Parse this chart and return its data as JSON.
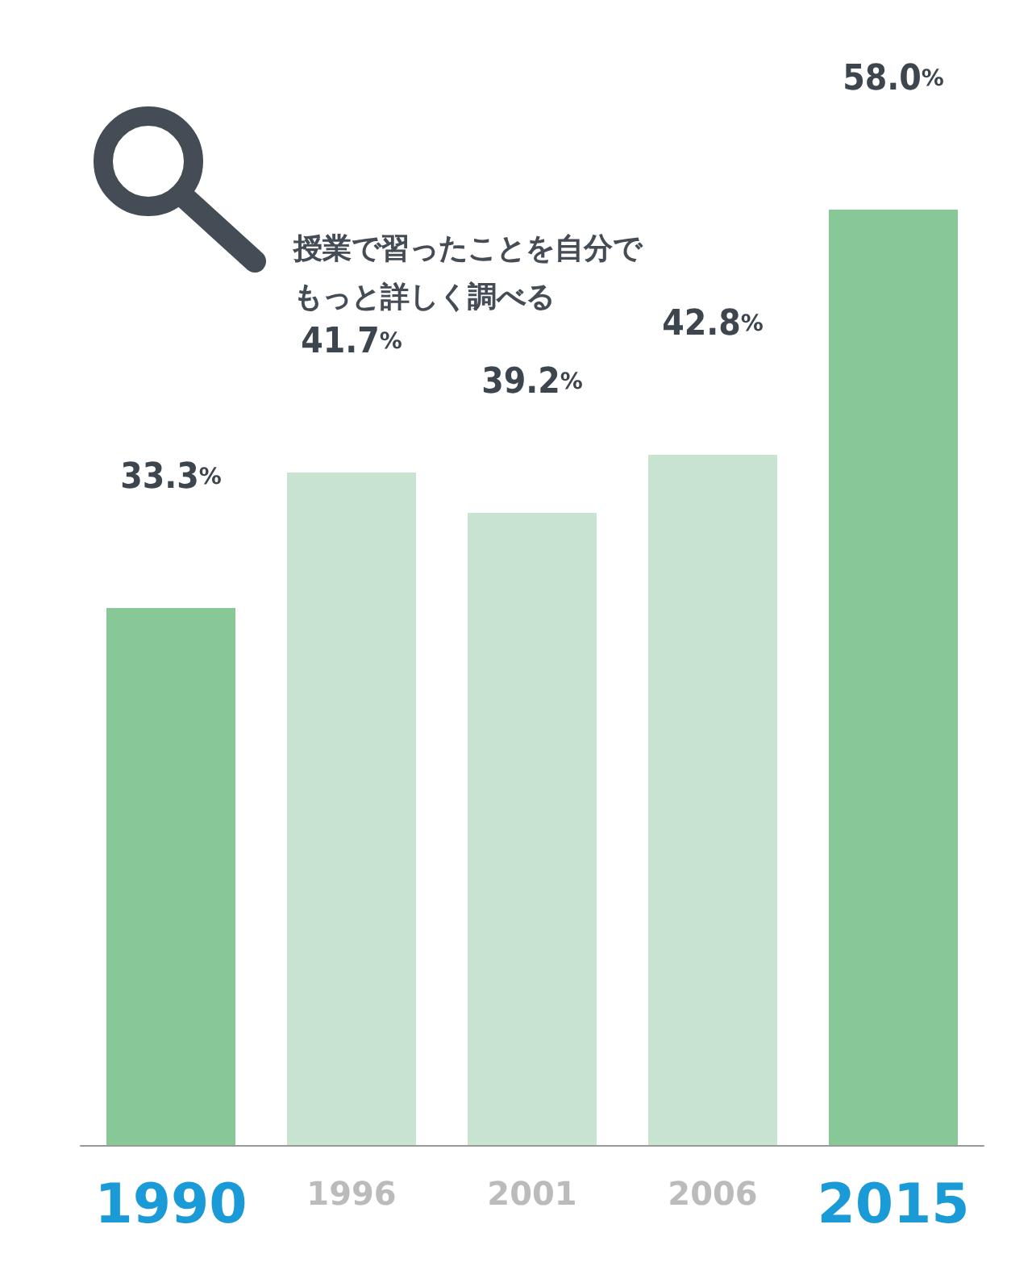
{
  "chart_data": {
    "type": "bar",
    "categories": [
      "1990",
      "1996",
      "2001",
      "2006",
      "2015"
    ],
    "values": [
      33.3,
      41.7,
      39.2,
      42.8,
      58.0
    ],
    "colors": [
      "#88c796",
      "#c8e4d0",
      "#c8e4d0",
      "#c8e4d0",
      "#88c796"
    ],
    "value_labels": [
      "33.3%",
      "41.7%",
      "39.2%",
      "42.8%",
      "58.0%"
    ],
    "annotations": [
      "授業で習ったことを自分でもっと詳しく調べる"
    ]
  }
}
